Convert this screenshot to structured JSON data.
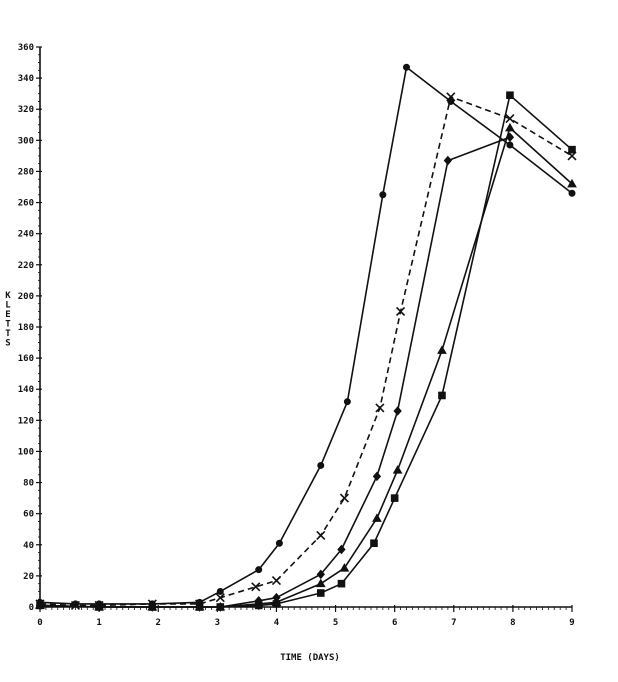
{
  "chart_data": {
    "type": "line",
    "xlabel": "TIME (DAYS)",
    "ylabel": "KLETTS",
    "xlim": [
      0,
      9
    ],
    "ylim": [
      0,
      360
    ],
    "x_ticks": [
      "0",
      "1",
      "2",
      "3",
      "4",
      "5",
      "6",
      "7",
      "8",
      "9"
    ],
    "y_ticks": [
      "0",
      "20",
      "40",
      "60",
      "80",
      "100",
      "120",
      "140",
      "160",
      "180",
      "200",
      "220",
      "240",
      "260",
      "280",
      "300",
      "320",
      "340",
      "360"
    ],
    "grid": false,
    "series": [
      {
        "marker": "circle",
        "dash": "solid",
        "points": [
          [
            0,
            3
          ],
          [
            0.6,
            2
          ],
          [
            1.0,
            2
          ],
          [
            1.9,
            2
          ],
          [
            2.7,
            3
          ],
          [
            3.05,
            10
          ],
          [
            3.7,
            24
          ],
          [
            4.05,
            41
          ],
          [
            4.75,
            91
          ],
          [
            5.2,
            132
          ],
          [
            5.8,
            265
          ],
          [
            6.2,
            347
          ],
          [
            6.95,
            325
          ],
          [
            7.95,
            297
          ],
          [
            9.0,
            266
          ]
        ]
      },
      {
        "marker": "x",
        "dash": "dashed",
        "points": [
          [
            0,
            2
          ],
          [
            0.6,
            1
          ],
          [
            1.0,
            1
          ],
          [
            1.9,
            2
          ],
          [
            2.7,
            2
          ],
          [
            3.05,
            6
          ],
          [
            3.65,
            13
          ],
          [
            4.0,
            17
          ],
          [
            4.75,
            46
          ],
          [
            5.15,
            70
          ],
          [
            5.75,
            128
          ],
          [
            6.1,
            190
          ],
          [
            6.95,
            328
          ],
          [
            7.95,
            314
          ],
          [
            9.0,
            290
          ]
        ]
      },
      {
        "marker": "diamond",
        "dash": "solid",
        "points": [
          [
            0,
            1
          ],
          [
            1.0,
            0
          ],
          [
            1.9,
            0
          ],
          [
            2.7,
            0
          ],
          [
            3.05,
            0
          ],
          [
            3.7,
            4
          ],
          [
            4.0,
            6
          ],
          [
            4.75,
            21
          ],
          [
            5.1,
            37
          ],
          [
            5.7,
            84
          ],
          [
            6.05,
            126
          ],
          [
            6.9,
            287
          ],
          [
            7.95,
            302
          ]
        ]
      },
      {
        "marker": "triangle",
        "dash": "solid",
        "points": [
          [
            0,
            1
          ],
          [
            1.0,
            0
          ],
          [
            1.9,
            0
          ],
          [
            2.7,
            0
          ],
          [
            3.05,
            0
          ],
          [
            3.7,
            2
          ],
          [
            4.0,
            3
          ],
          [
            4.75,
            15
          ],
          [
            5.15,
            25
          ],
          [
            5.7,
            57
          ],
          [
            6.05,
            88
          ],
          [
            6.8,
            165
          ],
          [
            7.95,
            308
          ],
          [
            9.0,
            272
          ]
        ]
      },
      {
        "marker": "square",
        "dash": "solid",
        "points": [
          [
            0,
            1
          ],
          [
            1.0,
            0
          ],
          [
            1.9,
            0
          ],
          [
            2.7,
            0
          ],
          [
            3.05,
            0
          ],
          [
            3.7,
            1
          ],
          [
            4.0,
            2
          ],
          [
            4.75,
            9
          ],
          [
            5.1,
            15
          ],
          [
            5.65,
            41
          ],
          [
            6.0,
            70
          ],
          [
            6.8,
            136
          ],
          [
            7.95,
            329
          ],
          [
            9.0,
            294
          ]
        ]
      }
    ]
  }
}
